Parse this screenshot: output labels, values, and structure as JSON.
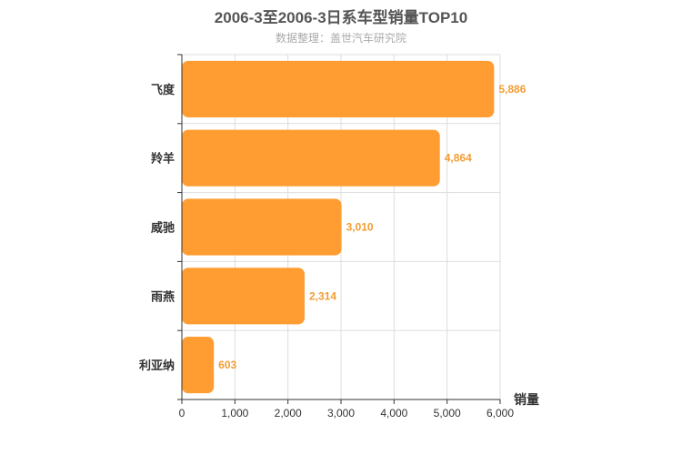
{
  "chart_data": {
    "type": "bar",
    "orientation": "horizontal",
    "title": "2006-3至2006-3日系车型销量TOP10",
    "subtitle": "数据整理：盖世汽车研究院",
    "xlabel": "销量",
    "ylabel": "",
    "categories": [
      "飞度",
      "羚羊",
      "威驰",
      "雨燕",
      "利亚纳"
    ],
    "values": [
      5886,
      4864,
      3010,
      2314,
      603
    ],
    "value_labels": [
      "5,886",
      "4,864",
      "3,010",
      "2,314",
      "603"
    ],
    "xlim": [
      0,
      6000
    ],
    "xticks": [
      0,
      1000,
      2000,
      3000,
      4000,
      5000,
      6000
    ],
    "xtick_labels": [
      "0",
      "1,000",
      "2,000",
      "3,000",
      "4,000",
      "5,000",
      "6,000"
    ],
    "grid": true,
    "bar_color": "#ff9d33",
    "label_color": "#f39c33"
  }
}
